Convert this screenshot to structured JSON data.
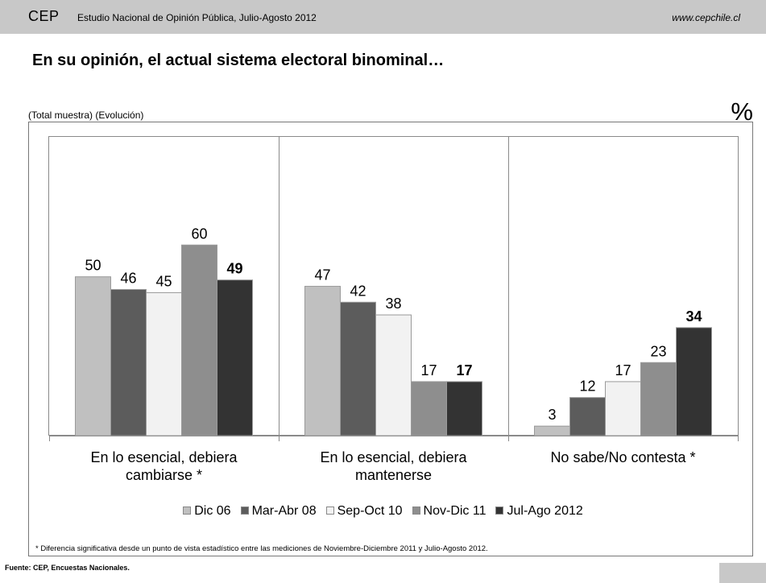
{
  "header": {
    "brand": "CEP",
    "subtitle": "Estudio Nacional de Opinión Pública, Julio-Agosto 2012",
    "website": "www.cepchile.cl"
  },
  "page_title": "En su opinión, el actual sistema electoral binominal…",
  "sample_note": "(Total muestra) (Evolución)",
  "unit_symbol": "%",
  "footnote": "* Diferencia significativa desde un punto de vista estadístico entre las mediciones de Noviembre-Diciembre 2011 y Julio-Agosto 2012.",
  "source": "Fuente: CEP, Encuestas Nacionales.",
  "chart_data": {
    "type": "bar",
    "categories": [
      [
        "En lo esencial, debiera",
        "cambiarse *"
      ],
      [
        "En lo esencial, debiera",
        "mantenerse"
      ],
      [
        "No sabe/No contesta *"
      ]
    ],
    "series": [
      {
        "name": "Dic 06",
        "values": [
          50,
          47,
          3
        ],
        "color": "#c0c0c0"
      },
      {
        "name": "Mar-Abr 08",
        "values": [
          46,
          42,
          12
        ],
        "color": "#5c5c5c"
      },
      {
        "name": "Sep-Oct 10",
        "values": [
          45,
          38,
          17
        ],
        "color": "#f2f2f2"
      },
      {
        "name": "Nov-Dic 11",
        "values": [
          60,
          17,
          23
        ],
        "color": "#8e8e8e"
      },
      {
        "name": "Jul-Ago 2012",
        "values": [
          49,
          17,
          34
        ],
        "color": "#333333",
        "bold_labels": true
      }
    ],
    "ylim": [
      0,
      92
    ],
    "grid": false,
    "legend": "bottom"
  }
}
